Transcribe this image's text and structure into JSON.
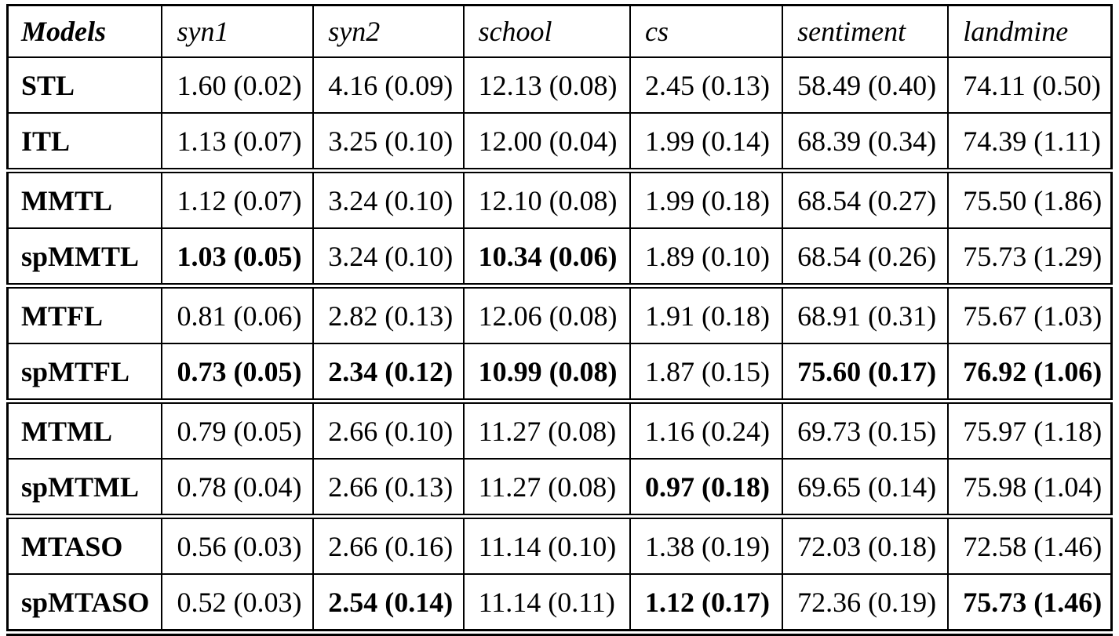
{
  "page": {
    "background_color": "#ffffff",
    "text_color": "#000000",
    "border_color": "#000000"
  },
  "table": {
    "header_labels": [
      "Models",
      "syn1",
      "syn2",
      "school",
      "cs",
      "sentiment",
      "landmine"
    ],
    "groups": [
      {
        "rows": [
          {
            "model": "STL",
            "cells": [
              {
                "text": "1.60 (0.02)",
                "bold": false
              },
              {
                "text": "4.16 (0.09)",
                "bold": false
              },
              {
                "text": "12.13 (0.08)",
                "bold": false
              },
              {
                "text": "2.45 (0.13)",
                "bold": false
              },
              {
                "text": "58.49 (0.40)",
                "bold": false
              },
              {
                "text": "74.11 (0.50)",
                "bold": false
              }
            ]
          },
          {
            "model": "ITL",
            "cells": [
              {
                "text": "1.13 (0.07)",
                "bold": false
              },
              {
                "text": "3.25 (0.10)",
                "bold": false
              },
              {
                "text": "12.00 (0.04)",
                "bold": false
              },
              {
                "text": "1.99 (0.14)",
                "bold": false
              },
              {
                "text": "68.39 (0.34)",
                "bold": false
              },
              {
                "text": "74.39 (1.11)",
                "bold": false
              }
            ]
          }
        ]
      },
      {
        "rows": [
          {
            "model": "MMTL",
            "cells": [
              {
                "text": "1.12 (0.07)",
                "bold": false
              },
              {
                "text": "3.24 (0.10)",
                "bold": false
              },
              {
                "text": "12.10 (0.08)",
                "bold": false
              },
              {
                "text": "1.99 (0.18)",
                "bold": false
              },
              {
                "text": "68.54 (0.27)",
                "bold": false
              },
              {
                "text": "75.50 (1.86)",
                "bold": false
              }
            ]
          },
          {
            "model": "spMMTL",
            "cells": [
              {
                "text": "1.03 (0.05)",
                "bold": true
              },
              {
                "text": "3.24 (0.10)",
                "bold": false
              },
              {
                "text": "10.34 (0.06)",
                "bold": true
              },
              {
                "text": "1.89 (0.10)",
                "bold": false
              },
              {
                "text": "68.54 (0.26)",
                "bold": false
              },
              {
                "text": "75.73 (1.29)",
                "bold": false
              }
            ]
          }
        ]
      },
      {
        "rows": [
          {
            "model": "MTFL",
            "cells": [
              {
                "text": "0.81 (0.06)",
                "bold": false
              },
              {
                "text": "2.82 (0.13)",
                "bold": false
              },
              {
                "text": "12.06 (0.08)",
                "bold": false
              },
              {
                "text": "1.91 (0.18)",
                "bold": false
              },
              {
                "text": "68.91 (0.31)",
                "bold": false
              },
              {
                "text": "75.67 (1.03)",
                "bold": false
              }
            ]
          },
          {
            "model": "spMTFL",
            "cells": [
              {
                "text": "0.73 (0.05)",
                "bold": true
              },
              {
                "text": "2.34 (0.12)",
                "bold": true
              },
              {
                "text": "10.99 (0.08)",
                "bold": true
              },
              {
                "text": "1.87 (0.15)",
                "bold": false
              },
              {
                "text": "75.60 (0.17)",
                "bold": true
              },
              {
                "text": "76.92 (1.06)",
                "bold": true
              }
            ]
          }
        ]
      },
      {
        "rows": [
          {
            "model": "MTML",
            "cells": [
              {
                "text": "0.79 (0.05)",
                "bold": false
              },
              {
                "text": "2.66 (0.10)",
                "bold": false
              },
              {
                "text": "11.27 (0.08)",
                "bold": false
              },
              {
                "text": "1.16 (0.24)",
                "bold": false
              },
              {
                "text": "69.73 (0.15)",
                "bold": false
              },
              {
                "text": "75.97 (1.18)",
                "bold": false
              }
            ]
          },
          {
            "model": "spMTML",
            "cells": [
              {
                "text": "0.78 (0.04)",
                "bold": false
              },
              {
                "text": "2.66 (0.13)",
                "bold": false
              },
              {
                "text": "11.27 (0.08)",
                "bold": false
              },
              {
                "text": "0.97 (0.18)",
                "bold": true
              },
              {
                "text": "69.65 (0.14)",
                "bold": false
              },
              {
                "text": "75.98 (1.04)",
                "bold": false
              }
            ]
          }
        ]
      },
      {
        "rows": [
          {
            "model": "MTASO",
            "cells": [
              {
                "text": "0.56 (0.03)",
                "bold": false
              },
              {
                "text": "2.66 (0.16)",
                "bold": false
              },
              {
                "text": "11.14 (0.10)",
                "bold": false
              },
              {
                "text": "1.38 (0.19)",
                "bold": false
              },
              {
                "text": "72.03 (0.18)",
                "bold": false
              },
              {
                "text": "72.58 (1.46)",
                "bold": false
              }
            ]
          },
          {
            "model": "spMTASO",
            "cells": [
              {
                "text": "0.52 (0.03)",
                "bold": false
              },
              {
                "text": "2.54 (0.14)",
                "bold": true
              },
              {
                "text": "11.14 (0.11)",
                "bold": false
              },
              {
                "text": "1.12 (0.17)",
                "bold": true
              },
              {
                "text": "72.36 (0.19)",
                "bold": false
              },
              {
                "text": "75.73 (1.46)",
                "bold": true
              }
            ]
          }
        ]
      }
    ]
  }
}
